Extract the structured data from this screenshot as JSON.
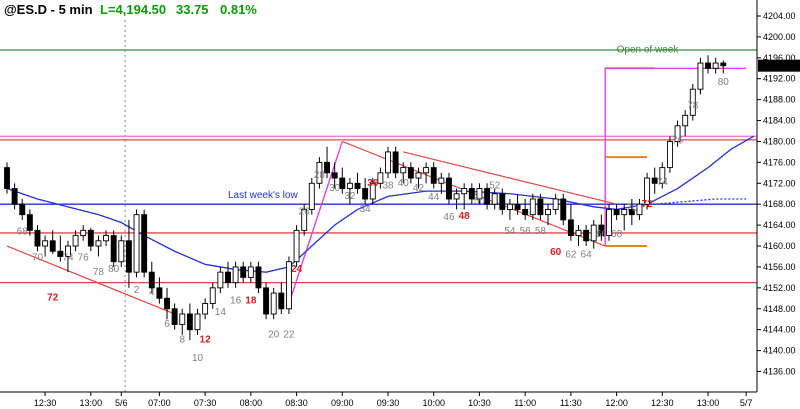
{
  "header": {
    "symbol": "@ES.D - 5 min",
    "last": "L=4,194.50",
    "change": "33.75",
    "pct": "0.81%"
  },
  "colors": {
    "up_candle": "#ffffff",
    "down_candle": "#000000",
    "ema": "#2233cc",
    "channel": "#e04848",
    "magenta": "#dd44dd",
    "orange": "#e08a1e",
    "green": "#3a8a3a",
    "blue_line": "#2233cc",
    "pink_line": "#e070e0",
    "red_line": "#e04848",
    "label_red": "#cc2222",
    "label_gray": "#808080",
    "label_blue": "#2233cc"
  },
  "chart_data": {
    "type": "candlestick",
    "price_axis_ticks": [
      4136,
      4140,
      4144,
      4148,
      4152,
      4156,
      4160,
      4164,
      4168,
      4172,
      4176,
      4180,
      4184,
      4188,
      4192,
      4196,
      4200,
      4204
    ],
    "ylim": [
      4136,
      4206
    ],
    "last_price_label": "4194.50",
    "time_ticks": [
      {
        "label": "12:30",
        "i": 5
      },
      {
        "label": "13:00",
        "i": 11
      },
      {
        "label": "5/6",
        "i": 15
      },
      {
        "label": "07:00",
        "i": 20
      },
      {
        "label": "07:30",
        "i": 26
      },
      {
        "label": "08:00",
        "i": 32
      },
      {
        "label": "08:30",
        "i": 38
      },
      {
        "label": "09:00",
        "i": 44
      },
      {
        "label": "09:30",
        "i": 50
      },
      {
        "label": "10:00",
        "i": 56
      },
      {
        "label": "10:30",
        "i": 62
      },
      {
        "label": "11:00",
        "i": 68
      },
      {
        "label": "11:30",
        "i": 74
      },
      {
        "label": "12:00",
        "i": 80
      },
      {
        "label": "12:30",
        "i": 86
      },
      {
        "label": "13:00",
        "i": 92
      },
      {
        "label": "5/7",
        "i": 97
      }
    ],
    "candles": [
      [
        4175,
        4176,
        4170,
        4171
      ],
      [
        4171,
        4172,
        4167,
        4168
      ],
      [
        4168,
        4169,
        4165,
        4166
      ],
      [
        4166,
        4167,
        4162,
        4163
      ],
      [
        4163,
        4164,
        4159,
        4160
      ],
      [
        4160,
        4162,
        4158,
        4161
      ],
      [
        4161,
        4163,
        4158.5,
        4159
      ],
      [
        4159,
        4162,
        4157,
        4158
      ],
      [
        4158,
        4161,
        4155,
        4160
      ],
      [
        4160,
        4163,
        4159,
        4162
      ],
      [
        4162,
        4164,
        4161,
        4163
      ],
      [
        4163,
        4163.5,
        4159,
        4160
      ],
      [
        4160,
        4162,
        4158,
        4161
      ],
      [
        4161,
        4163,
        4160,
        4162
      ],
      [
        4162,
        4163,
        4156,
        4157
      ],
      [
        4157,
        4162,
        4156,
        4161
      ],
      [
        4161,
        4165,
        4152,
        4155
      ],
      [
        4155,
        4167,
        4154,
        4166
      ],
      [
        4166,
        4167,
        4154,
        4155
      ],
      [
        4155,
        4157,
        4151,
        4152
      ],
      [
        4152,
        4154,
        4149,
        4150
      ],
      [
        4150,
        4152,
        4146,
        4148
      ],
      [
        4148,
        4149,
        4144,
        4145
      ],
      [
        4145,
        4148,
        4143,
        4147
      ],
      [
        4147,
        4149,
        4142,
        4144
      ],
      [
        4144,
        4148,
        4143,
        4147
      ],
      [
        4147,
        4150,
        4146,
        4149
      ],
      [
        4149,
        4153,
        4148,
        4152
      ],
      [
        4152,
        4156,
        4151,
        4155
      ],
      [
        4155,
        4157,
        4152,
        4153
      ],
      [
        4153,
        4157,
        4152,
        4156
      ],
      [
        4156,
        4157,
        4153,
        4154
      ],
      [
        4154,
        4157,
        4153,
        4156
      ],
      [
        4156,
        4157,
        4151,
        4152
      ],
      [
        4152,
        4153,
        4146,
        4147
      ],
      [
        4147,
        4152,
        4146,
        4151
      ],
      [
        4151,
        4153,
        4147,
        4148
      ],
      [
        4148,
        4158,
        4147,
        4157
      ],
      [
        4157,
        4164,
        4156,
        4163
      ],
      [
        4163,
        4168,
        4162,
        4167
      ],
      [
        4167,
        4173,
        4166,
        4172
      ],
      [
        4172,
        4177,
        4171,
        4176
      ],
      [
        4176,
        4179,
        4173,
        4174
      ],
      [
        4174,
        4176,
        4171,
        4173
      ],
      [
        4173,
        4175,
        4170,
        4171
      ],
      [
        4171,
        4173,
        4168,
        4172
      ],
      [
        4172,
        4174,
        4170,
        4171
      ],
      [
        4171,
        4173,
        4168,
        4169
      ],
      [
        4169,
        4173,
        4168,
        4172
      ],
      [
        4172,
        4175,
        4171,
        4174
      ],
      [
        4174,
        4179,
        4173,
        4178
      ],
      [
        4178,
        4179,
        4173,
        4174
      ],
      [
        4174,
        4176,
        4172,
        4175
      ],
      [
        4175,
        4176,
        4172,
        4173
      ],
      [
        4173,
        4175,
        4171,
        4174
      ],
      [
        4174,
        4176,
        4172,
        4175
      ],
      [
        4175,
        4176,
        4171,
        4172
      ],
      [
        4172,
        4174,
        4170,
        4173
      ],
      [
        4173,
        4174,
        4168,
        4169
      ],
      [
        4169,
        4171,
        4167,
        4170
      ],
      [
        4170,
        4172,
        4167,
        4171
      ],
      [
        4171,
        4172,
        4168,
        4169
      ],
      [
        4169,
        4172,
        4168,
        4171
      ],
      [
        4171,
        4172,
        4167,
        4168
      ],
      [
        4168,
        4171,
        4167,
        4170
      ],
      [
        4170,
        4171,
        4166,
        4167
      ],
      [
        4167,
        4169,
        4165,
        4168
      ],
      [
        4168,
        4170,
        4166,
        4167
      ],
      [
        4167,
        4169,
        4165,
        4166
      ],
      [
        4166,
        4170,
        4165,
        4169
      ],
      [
        4169,
        4170,
        4165,
        4166
      ],
      [
        4166,
        4168,
        4164,
        4167
      ],
      [
        4167,
        4170,
        4166,
        4169
      ],
      [
        4169,
        4170,
        4164,
        4165
      ],
      [
        4165,
        4168,
        4161,
        4162
      ],
      [
        4162,
        4164,
        4160,
        4163
      ],
      [
        4163,
        4164,
        4160,
        4161
      ],
      [
        4161,
        4165,
        4159.5,
        4164
      ],
      [
        4164,
        4166,
        4161,
        4162
      ],
      [
        4162,
        4168,
        4161,
        4167
      ],
      [
        4167,
        4168,
        4165,
        4166
      ],
      [
        4166,
        4168,
        4163,
        4167
      ],
      [
        4167,
        4169,
        4164,
        4166
      ],
      [
        4166,
        4169,
        4165,
        4168
      ],
      [
        4168,
        4174,
        4167,
        4173
      ],
      [
        4173,
        4175,
        4170,
        4172
      ],
      [
        4172,
        4176,
        4171,
        4175
      ],
      [
        4175,
        4181,
        4174,
        4180
      ],
      [
        4180,
        4184,
        4179,
        4183
      ],
      [
        4183,
        4186,
        4181,
        4185
      ],
      [
        4185,
        4191,
        4184,
        4190
      ],
      [
        4190,
        4196,
        4189,
        4195
      ],
      [
        4195,
        4196.5,
        4193,
        4194
      ],
      [
        4194,
        4196,
        4193,
        4195
      ],
      [
        4195,
        4195.5,
        4193,
        4194.5
      ]
    ],
    "ema": [
      [
        0,
        4171
      ],
      [
        4,
        4169
      ],
      [
        8,
        4167.5
      ],
      [
        12,
        4166
      ],
      [
        15,
        4164.5
      ],
      [
        18,
        4162
      ],
      [
        22,
        4159
      ],
      [
        26,
        4156.5
      ],
      [
        30,
        4155.5
      ],
      [
        34,
        4155
      ],
      [
        37,
        4156
      ],
      [
        40,
        4160
      ],
      [
        43,
        4164
      ],
      [
        46,
        4167
      ],
      [
        50,
        4169.5
      ],
      [
        55,
        4170.5
      ],
      [
        60,
        4170.5
      ],
      [
        66,
        4170
      ],
      [
        72,
        4169
      ],
      [
        77,
        4167.5
      ],
      [
        80,
        4167
      ],
      [
        84,
        4168
      ],
      [
        88,
        4171
      ],
      [
        92,
        4175
      ],
      [
        95,
        4178.5
      ],
      [
        98,
        4181
      ]
    ],
    "dotted_ema": [
      [
        80,
        4168
      ],
      [
        85,
        4168
      ],
      [
        89,
        4168.5
      ],
      [
        93,
        4169
      ],
      [
        97,
        4169
      ]
    ],
    "horizontal_lines": [
      {
        "price": 4197.5,
        "color_key": "green",
        "from": 0,
        "to": 100
      },
      {
        "price": 4181,
        "color_key": "pink_line",
        "from": 0,
        "to": 100
      },
      {
        "price": 4180.3,
        "color_key": "red_line",
        "from": 0,
        "to": 100
      },
      {
        "price": 4168,
        "color_key": "blue_line",
        "from": 0,
        "to": 100
      },
      {
        "price": 4162.5,
        "color_key": "red_line",
        "from": 0,
        "to": 100
      },
      {
        "price": 4153,
        "color_key": "red_line",
        "from": 0,
        "to": 100
      }
    ],
    "orange_segments": [
      {
        "price": 4194,
        "from": 78.5,
        "to": 85
      },
      {
        "price": 4177,
        "from": 78.5,
        "to": 84
      },
      {
        "price": 4160,
        "from": 78.5,
        "to": 84
      }
    ],
    "magenta_lines": [
      {
        "points": [
          [
            78.5,
            4160
          ],
          [
            78.5,
            4194
          ],
          [
            97,
            4194
          ]
        ]
      },
      {
        "points": [
          [
            37,
            4149
          ],
          [
            44,
            4180
          ]
        ]
      }
    ],
    "channel_lines": [
      {
        "points": [
          [
            0,
            4160
          ],
          [
            22,
            4147
          ]
        ]
      },
      {
        "points": [
          [
            44,
            4180
          ],
          [
            78.5,
            4160
          ]
        ]
      },
      {
        "points": [
          [
            52,
            4178
          ],
          [
            80,
            4168
          ]
        ]
      }
    ],
    "divider_index": 15.5,
    "text_annotations": [
      {
        "text": "Open of week",
        "i": 80,
        "price": 4197,
        "color_key": "green"
      },
      {
        "text": "Last week's low",
        "i": 29,
        "price": 4169.2,
        "color_key": "label_blue"
      }
    ],
    "bar_numbers": [
      {
        "text": "68",
        "i": 2,
        "price": 4162.2,
        "color_key": "label_gray"
      },
      {
        "text": "70",
        "i": 4,
        "price": 4157.2,
        "color_key": "label_gray"
      },
      {
        "text": "74",
        "i": 8,
        "price": 4157.2,
        "color_key": "label_gray"
      },
      {
        "text": "76",
        "i": 10,
        "price": 4157.2,
        "color_key": "label_gray"
      },
      {
        "text": "78",
        "i": 12,
        "price": 4154.5,
        "color_key": "label_gray"
      },
      {
        "text": "80",
        "i": 14,
        "price": 4155,
        "color_key": "label_gray"
      },
      {
        "text": "72",
        "i": 6,
        "price": 4149.6,
        "color_key": "label_red"
      },
      {
        "text": "2",
        "i": 17,
        "price": 4151,
        "color_key": "label_gray"
      },
      {
        "text": "4",
        "i": 19,
        "price": 4150.5,
        "color_key": "label_gray"
      },
      {
        "text": "6",
        "i": 21,
        "price": 4144.5,
        "color_key": "label_gray"
      },
      {
        "text": "8",
        "i": 23,
        "price": 4141.5,
        "color_key": "label_gray"
      },
      {
        "text": "10",
        "i": 25,
        "price": 4138,
        "color_key": "label_gray"
      },
      {
        "text": "12",
        "i": 26,
        "price": 4141.5,
        "color_key": "label_red"
      },
      {
        "text": "14",
        "i": 28,
        "price": 4146.8,
        "color_key": "label_gray"
      },
      {
        "text": "16",
        "i": 30,
        "price": 4149,
        "color_key": "label_gray"
      },
      {
        "text": "18",
        "i": 32,
        "price": 4149,
        "color_key": "label_red"
      },
      {
        "text": "20",
        "i": 35,
        "price": 4142.5,
        "color_key": "label_gray"
      },
      {
        "text": "22",
        "i": 37,
        "price": 4142.5,
        "color_key": "label_gray"
      },
      {
        "text": "24",
        "i": 38,
        "price": 4155,
        "color_key": "label_red"
      },
      {
        "text": "26",
        "i": 39,
        "price": 4166,
        "color_key": "label_gray"
      },
      {
        "text": "28",
        "i": 41,
        "price": 4173,
        "color_key": "label_gray"
      },
      {
        "text": "30",
        "i": 43,
        "price": 4170.5,
        "color_key": "label_gray"
      },
      {
        "text": "32",
        "i": 45,
        "price": 4169,
        "color_key": "label_gray"
      },
      {
        "text": "34",
        "i": 47,
        "price": 4166.5,
        "color_key": "label_gray"
      },
      {
        "text": "36",
        "i": 48,
        "price": 4171.5,
        "color_key": "label_red"
      },
      {
        "text": "38",
        "i": 50,
        "price": 4171,
        "color_key": "label_gray"
      },
      {
        "text": "40",
        "i": 52,
        "price": 4171.5,
        "color_key": "label_gray"
      },
      {
        "text": "42",
        "i": 54,
        "price": 4170.5,
        "color_key": "label_gray"
      },
      {
        "text": "44",
        "i": 56,
        "price": 4168.8,
        "color_key": "label_gray"
      },
      {
        "text": "46",
        "i": 58,
        "price": 4165,
        "color_key": "label_gray"
      },
      {
        "text": "48",
        "i": 60,
        "price": 4165.2,
        "color_key": "label_red"
      },
      {
        "text": "50",
        "i": 62,
        "price": 4168,
        "color_key": "label_gray"
      },
      {
        "text": "52",
        "i": 64,
        "price": 4171,
        "color_key": "label_gray"
      },
      {
        "text": "54",
        "i": 66,
        "price": 4162.3,
        "color_key": "label_gray"
      },
      {
        "text": "56",
        "i": 68,
        "price": 4162.3,
        "color_key": "label_gray"
      },
      {
        "text": "58",
        "i": 70,
        "price": 4162.3,
        "color_key": "label_gray"
      },
      {
        "text": "60",
        "i": 72,
        "price": 4158.3,
        "color_key": "label_red"
      },
      {
        "text": "62",
        "i": 74,
        "price": 4157.8,
        "color_key": "label_gray"
      },
      {
        "text": "64",
        "i": 76,
        "price": 4157.8,
        "color_key": "label_gray"
      },
      {
        "text": "66",
        "i": 78,
        "price": 4161.7,
        "color_key": "label_gray"
      },
      {
        "text": "68",
        "i": 80,
        "price": 4161.7,
        "color_key": "label_gray"
      },
      {
        "text": "70",
        "i": 82,
        "price": 4166.7,
        "color_key": "label_gray"
      },
      {
        "text": "72",
        "i": 84,
        "price": 4167.5,
        "color_key": "label_red"
      },
      {
        "text": "74",
        "i": 86,
        "price": 4171.7,
        "color_key": "label_gray"
      },
      {
        "text": "76",
        "i": 88,
        "price": 4179.6,
        "color_key": "label_gray"
      },
      {
        "text": "78",
        "i": 90,
        "price": 4186.3,
        "color_key": "label_gray"
      },
      {
        "text": "80",
        "i": 94,
        "price": 4190.8,
        "color_key": "label_gray"
      }
    ]
  }
}
